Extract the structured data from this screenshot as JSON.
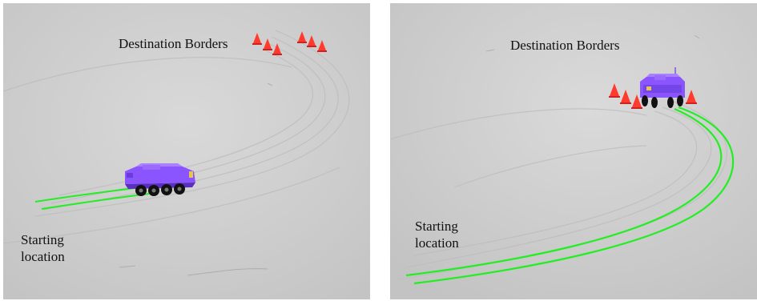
{
  "panels": [
    {
      "destination_label": "Destination Borders",
      "start_label": "Starting\nlocation"
    },
    {
      "destination_label": "Destination Borders",
      "start_label": "Starting\nlocation"
    }
  ],
  "colors": {
    "ground": "#cfcfcf",
    "vehicle": "#8a55ff",
    "trajectory": "#22ee22",
    "cone": "#ff3b2f",
    "text": "#111111"
  },
  "icons": {
    "vehicle": "armored-vehicle-icon",
    "cone": "traffic-cone-icon"
  }
}
